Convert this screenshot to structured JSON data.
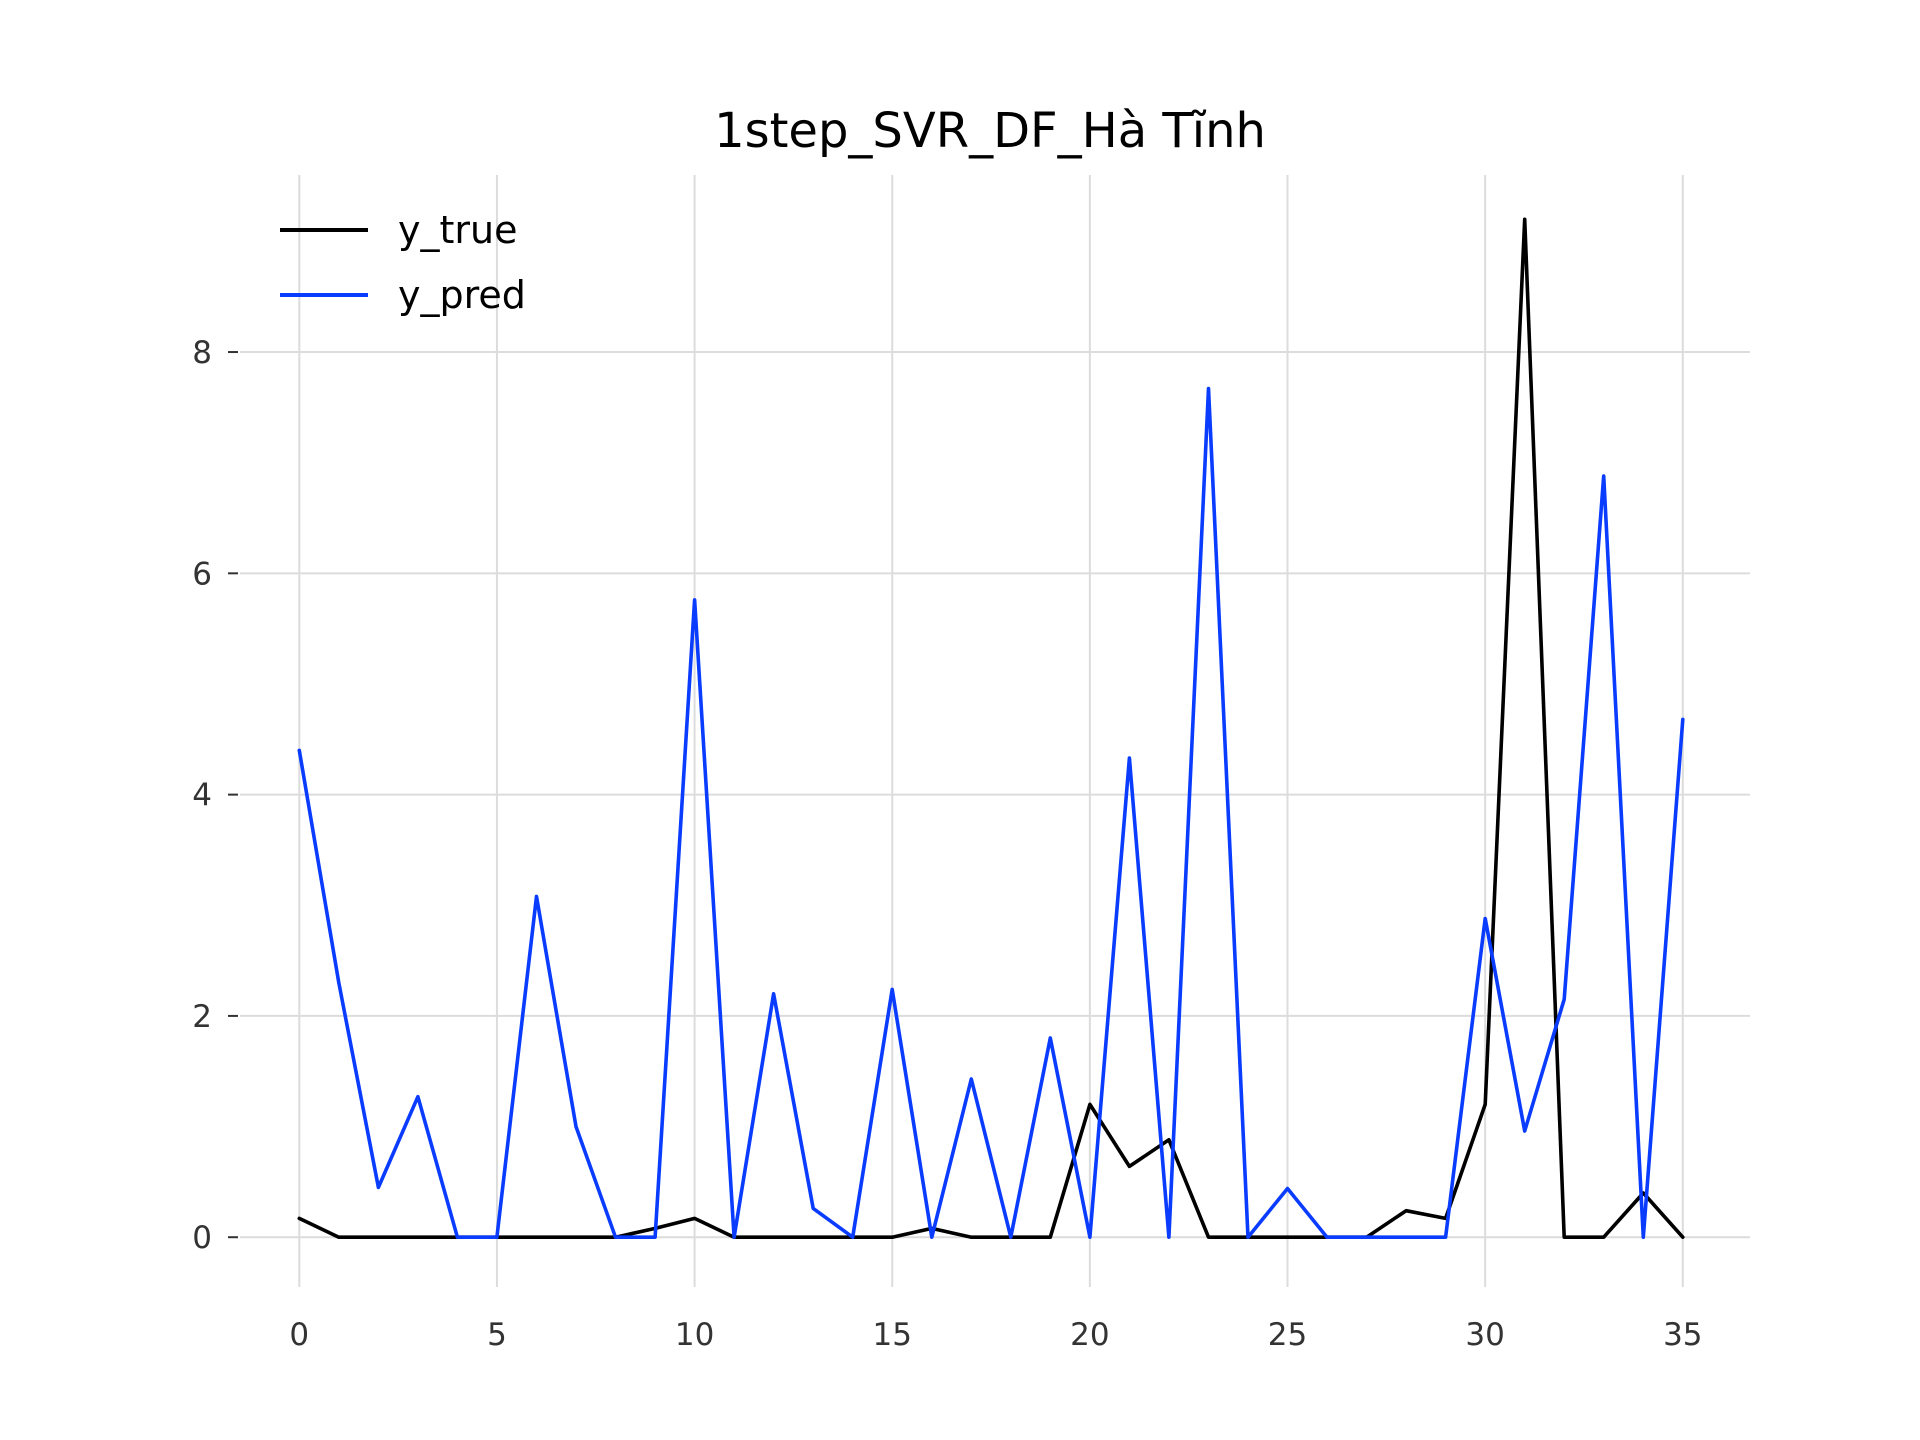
{
  "chart_data": {
    "type": "line",
    "title": "1step_SVR_DF_Hà Tĩnh",
    "xlabel": "",
    "ylabel": "",
    "x": [
      0,
      1,
      2,
      3,
      4,
      5,
      6,
      7,
      8,
      9,
      10,
      11,
      12,
      13,
      14,
      15,
      16,
      17,
      18,
      19,
      20,
      21,
      22,
      23,
      24,
      25,
      26,
      27,
      28,
      29,
      30,
      31,
      32,
      33,
      34,
      35
    ],
    "xlim": [
      -1.5,
      36.7
    ],
    "ylim": [
      -0.45,
      9.6
    ],
    "xticks": [
      0,
      5,
      10,
      15,
      20,
      25,
      30,
      35
    ],
    "yticks": [
      0,
      2,
      4,
      6,
      8
    ],
    "grid": true,
    "legend_position": "top-left",
    "series": [
      {
        "name": "y_true",
        "color": "#000000",
        "values": [
          0.17,
          0,
          0,
          0,
          0,
          0,
          0,
          0,
          0,
          0.08,
          0.17,
          0,
          0,
          0,
          0,
          0,
          0.08,
          0,
          0,
          0,
          1.2,
          0.64,
          0.88,
          0,
          0,
          0,
          0,
          0,
          0.24,
          0.17,
          1.2,
          9.2,
          0,
          0,
          0.4,
          0
        ]
      },
      {
        "name": "y_pred",
        "color": "#0a3cff",
        "values": [
          4.4,
          2.3,
          0.45,
          1.27,
          0,
          0,
          3.08,
          1.0,
          0,
          0,
          5.76,
          0,
          2.2,
          0.26,
          0,
          2.24,
          0,
          1.43,
          0,
          1.8,
          0,
          4.33,
          0,
          7.67,
          0,
          0.44,
          0,
          0,
          0,
          0,
          2.88,
          0.96,
          2.15,
          6.88,
          0,
          4.68
        ]
      }
    ]
  }
}
